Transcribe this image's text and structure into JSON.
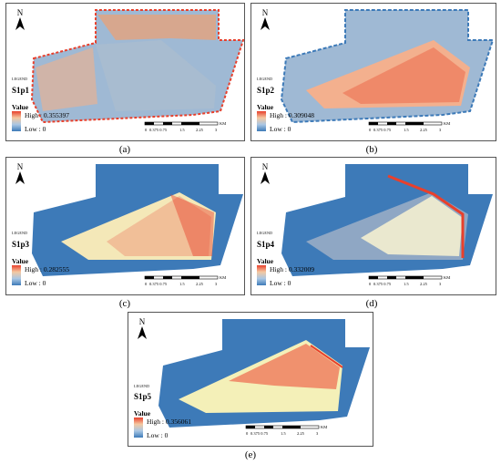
{
  "north_label": "N",
  "legend_word": "LEGEND",
  "value_word": "Value",
  "scale": {
    "ticks": [
      "0",
      "0.375 0.75",
      "1.5",
      "2.25",
      "3"
    ],
    "unit": "KM"
  },
  "colors": {
    "high": "#e8402c",
    "mid": "#f4f0b8",
    "low": "#3d7ab8",
    "pale_low": "#a9c7e4",
    "gray_blue": "#8fa7c4"
  },
  "panels": [
    {
      "id": "a",
      "layer": "S1p1",
      "high": "High : 0.355397",
      "low": "Low : 0",
      "caption": "(a)"
    },
    {
      "id": "b",
      "layer": "S1p2",
      "high": "High : 0.309048",
      "low": "Low : 0",
      "caption": "(b)"
    },
    {
      "id": "c",
      "layer": "S1p3",
      "high": "High : 0.282555",
      "low": "Low : 0",
      "caption": "(c)"
    },
    {
      "id": "d",
      "layer": "S1p4",
      "high": "High : 0.332009",
      "low": "Low : 0",
      "caption": "(d)"
    },
    {
      "id": "e",
      "layer": "S1p5",
      "high": "High : 0.356061",
      "low": "Low : 0",
      "caption": "(e)"
    }
  ]
}
